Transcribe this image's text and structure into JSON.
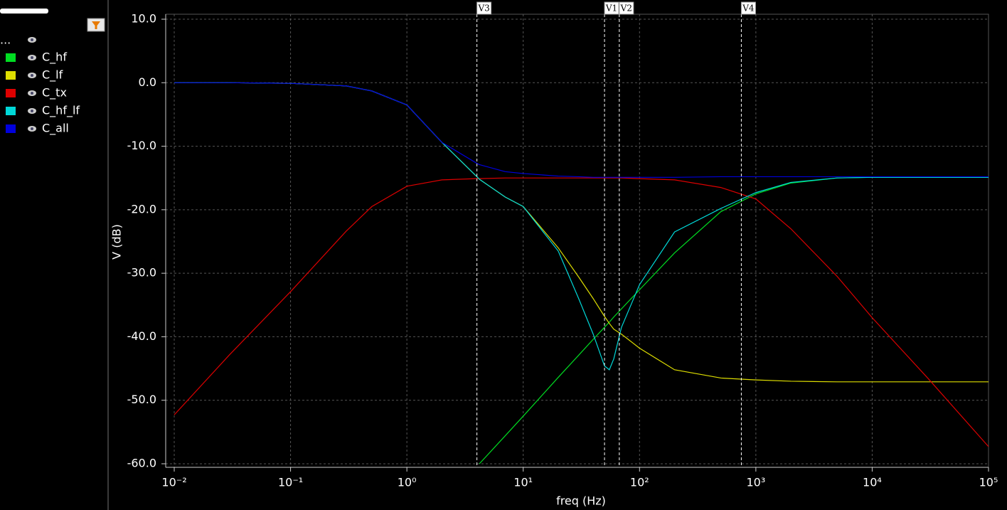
{
  "panel": {
    "header": "..."
  },
  "chart_data": {
    "type": "line",
    "xlabel": "freq (Hz)",
    "ylabel": "V (dB)",
    "xscale": "log",
    "xlim": [
      0.01,
      100000
    ],
    "ylim": [
      -60,
      10
    ],
    "xticks": [
      {
        "value": 0.01,
        "label": "10⁻²"
      },
      {
        "value": 0.1,
        "label": "10⁻¹"
      },
      {
        "value": 1,
        "label": "10⁰"
      },
      {
        "value": 10,
        "label": "10¹"
      },
      {
        "value": 100,
        "label": "10²"
      },
      {
        "value": 1000,
        "label": "10³"
      },
      {
        "value": 10000,
        "label": "10⁴"
      },
      {
        "value": 100000,
        "label": "10⁵"
      }
    ],
    "yticks": [
      {
        "value": 10,
        "label": "10.0"
      },
      {
        "value": 0,
        "label": "0.0"
      },
      {
        "value": -10,
        "label": "-10.0"
      },
      {
        "value": -20,
        "label": "-20.0"
      },
      {
        "value": -30,
        "label": "-30.0"
      },
      {
        "value": -40,
        "label": "-40.0"
      },
      {
        "value": -50,
        "label": "-50.0"
      },
      {
        "value": -60,
        "label": "-60.0"
      }
    ],
    "grid": true,
    "x": [
      0.01,
      0.03,
      0.1,
      0.3,
      0.5,
      1,
      2,
      4,
      4.2,
      7,
      10,
      20,
      30,
      40,
      50,
      55,
      60,
      70,
      100,
      200,
      500,
      1000,
      2000,
      5000,
      10000,
      30000,
      100000
    ],
    "series": [
      {
        "name": "C_hf",
        "color": "#00dd22",
        "values": [
          null,
          null,
          null,
          null,
          null,
          null,
          null,
          null,
          -60,
          -55.6,
          -52.5,
          -46.4,
          -42.9,
          -40.4,
          -38.5,
          -37.7,
          -36.9,
          -35.6,
          -32.6,
          -26.8,
          -20.3,
          -17.5,
          -15.8,
          -15.0,
          -14.9,
          -14.9,
          -14.9
        ]
      },
      {
        "name": "C_lf",
        "color": "#dddd00",
        "values": [
          0,
          0,
          -0.1,
          -0.5,
          -1.3,
          -3.5,
          -9.4,
          -14.8,
          -15.2,
          -18.0,
          -19.5,
          -26.0,
          -30.6,
          -34.0,
          -36.8,
          -37.9,
          -38.8,
          -39.6,
          -41.8,
          -45.2,
          -46.5,
          -46.8,
          -47.0,
          -47.1,
          -47.1,
          -47.1,
          -47.1
        ]
      },
      {
        "name": "C_tx",
        "color": "#dd0000",
        "values": [
          -52.3,
          -42.8,
          -32.9,
          -23.4,
          -19.5,
          -16.3,
          -15.3,
          -15.1,
          -15.1,
          -15.0,
          -15.0,
          -15.0,
          -15.0,
          -15.0,
          -15.0,
          -15.0,
          -15.0,
          -15.0,
          -15.1,
          -15.3,
          -16.5,
          -18.3,
          -23.0,
          -30.5,
          -37.0,
          -46.5,
          -57.3
        ]
      },
      {
        "name": "C_hf_lf",
        "color": "#00d8d8",
        "values": [
          0,
          0,
          -0.1,
          -0.5,
          -1.3,
          -3.5,
          -9.4,
          -14.8,
          -15.2,
          -18.0,
          -19.5,
          -26.5,
          -34.0,
          -39.6,
          -44.6,
          -45.2,
          -43.5,
          -38.5,
          -31.8,
          -23.5,
          -19.8,
          -17.3,
          -15.7,
          -15.0,
          -14.9,
          -14.9,
          -14.9
        ]
      },
      {
        "name": "C_all",
        "color": "#0000dd",
        "values": [
          0,
          0,
          -0.1,
          -0.5,
          -1.3,
          -3.5,
          -9.4,
          -12.7,
          -12.9,
          -14.0,
          -14.3,
          -14.7,
          -14.8,
          -14.9,
          -14.9,
          -14.9,
          -14.9,
          -14.9,
          -14.9,
          -14.9,
          -14.8,
          -14.8,
          -14.8,
          -14.8,
          -14.8,
          -14.8,
          -14.8
        ]
      }
    ],
    "markers": [
      {
        "label": "V3",
        "x": 4
      },
      {
        "label": "V1",
        "x": 50
      },
      {
        "label": "V2",
        "x": 67
      },
      {
        "label": "V4",
        "x": 750
      }
    ]
  }
}
